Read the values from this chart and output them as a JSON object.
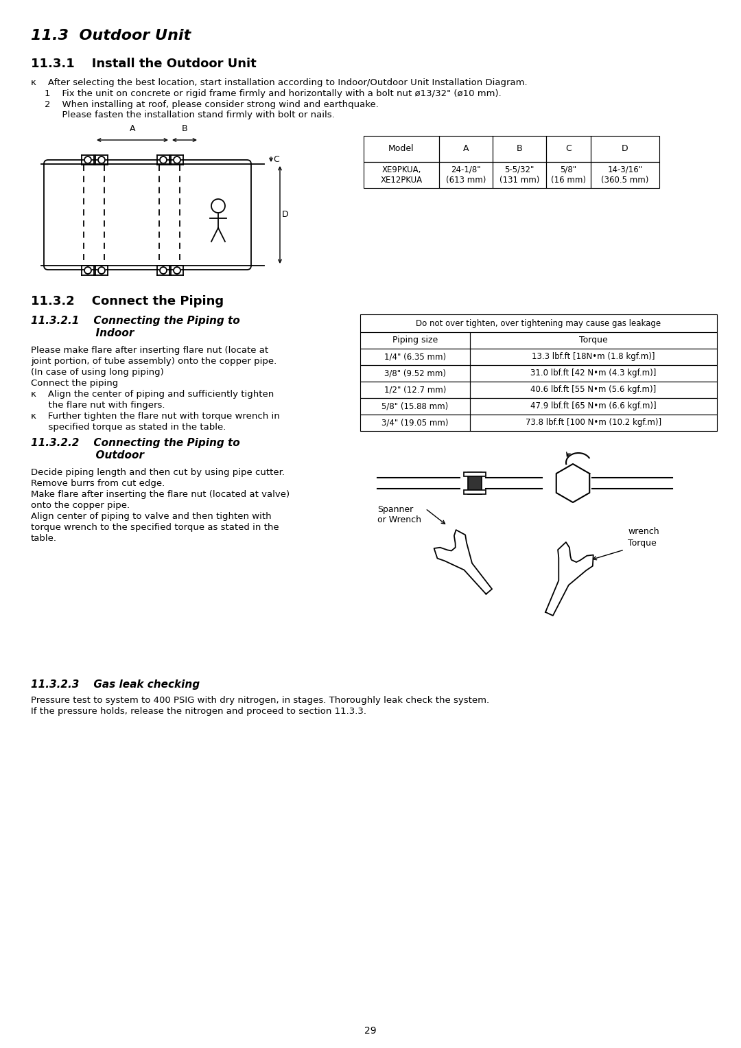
{
  "page_num": "29",
  "bg_color": "#ffffff",
  "section_11_3_title": "11.3  Outdoor Unit",
  "section_11_3_1_title": "11.3.1    Install the Outdoor Unit",
  "section_11_3_2_title": "11.3.2    Connect the Piping",
  "install_k": "κ    After selecting the best location, start installation according to Indoor/Outdoor Unit Installation Diagram.",
  "install_1": "1    Fix the unit on concrete or rigid frame firmly and horizontally with a bolt nut ø13/32\" (ø10 mm).",
  "install_2a": "2    When installing at roof, please consider strong wind and earthquake.",
  "install_2b": "      Please fasten the installation stand firmly with bolt or nails.",
  "table1_headers": [
    "Model",
    "A",
    "B",
    "C",
    "D"
  ],
  "table1_row": [
    "XE9PKUA,\nXE12PKUA",
    "24-1/8\"\n(613 mm)",
    "5-5/32\"\n(131 mm)",
    "5/8\"\n(16 mm)",
    "14-3/16\"\n(360.5 mm)"
  ],
  "s1321_title_a": "11.3.2.1    Connecting the Piping to",
  "s1321_title_b": "                  Indoor",
  "piping_indoor_text": [
    "Please make flare after inserting flare nut (locate at",
    "joint portion, of tube assembly) onto the copper pipe.",
    "(In case of using long piping)",
    "Connect the piping"
  ],
  "piping_bullet1a": "κ    Align the center of piping and sufficiently tighten",
  "piping_bullet1b": "      the flare nut with fingers.",
  "piping_bullet2a": "κ    Further tighten the flare nut with torque wrench in",
  "piping_bullet2b": "      specified torque as stated in the table.",
  "torque_header": "Do not over tighten, over tightening may cause gas leakage",
  "torque_col1": [
    "Piping size",
    "1/4\" (6.35 mm)",
    "3/8\" (9.52 mm)",
    "1/2\" (12.7 mm)",
    "5/8\" (15.88 mm)",
    "3/4\" (19.05 mm)"
  ],
  "torque_col2": [
    "Torque",
    "13.3 lbf.ft [18N•m (1.8 kgf.m)]",
    "31.0 lbf.ft [42 N•m (4.3 kgf.m)]",
    "40.6 lbf.ft [55 N•m (5.6 kgf.m)]",
    "47.9 lbf.ft [65 N•m (6.6 kgf.m)]",
    "73.8 lbf.ft [100 N•m (10.2 kgf.m)]"
  ],
  "s1322_title_a": "11.3.2.2    Connecting the Piping to",
  "s1322_title_b": "                  Outdoor",
  "outdoor_text": [
    "Decide piping length and then cut by using pipe cutter.",
    "Remove burrs from cut edge.",
    "Make flare after inserting the flare nut (located at valve)",
    "onto the copper pipe.",
    "Align center of piping to valve and then tighten with",
    "torque wrench to the specified torque as stated in the",
    "table."
  ],
  "s1323_title": "11.3.2.3    Gas leak checking",
  "gas_text": [
    "Pressure test to system to 400 PSIG with dry nitrogen, in stages. Thoroughly leak check the system.",
    "If the pressure holds, release the nitrogen and proceed to section 11.3.3."
  ]
}
